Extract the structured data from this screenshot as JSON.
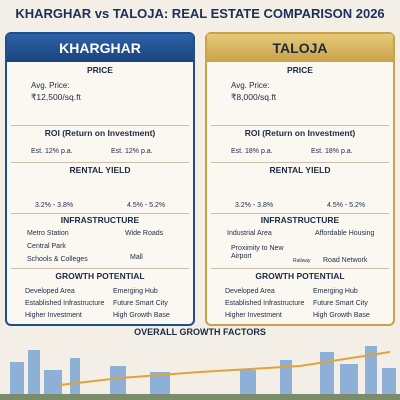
{
  "header": {
    "title": "KHARGHAR vs TALOJA: REAL ESTATE COMPARISON 2026"
  },
  "panels": [
    {
      "name": "KHARGHAR",
      "price": {
        "heading": "PRICE",
        "label": "Avg. Price:",
        "value": "₹12,500/sq.ft"
      },
      "roi": {
        "heading": "ROI (Return on Investment)",
        "values": [
          "Est. 12% p.a.",
          "Est. 12% p.a."
        ]
      },
      "rental": {
        "heading": "RENTAL YIELD",
        "values": [
          "3.2% - 3.8%",
          "4.5% - 5.2%"
        ]
      },
      "infrastructure": {
        "heading": "INFRASTRUCTURE",
        "items": [
          "Metro Station",
          "Wide Roads",
          "Central Park",
          "Schools & Colleges",
          "Mall"
        ]
      },
      "growth": {
        "heading": "GROWTH POTENTIAL",
        "items": [
          "Developed Area",
          "Emerging Hub",
          "Established Infrastructure",
          "Future Smart City",
          "Higher Investment",
          "High Growth Base"
        ]
      }
    },
    {
      "name": "TALOJA",
      "price": {
        "heading": "PRICE",
        "label": "Avg. Price:",
        "value": "₹8,000/sq.ft"
      },
      "roi": {
        "heading": "ROI (Return on Investment)",
        "values": [
          "Est. 18% p.a.",
          "Est. 18% p.a."
        ]
      },
      "rental": {
        "heading": "RENTAL YIELD",
        "values": [
          "3.2% - 3.8%",
          "4.5% - 5.2%"
        ]
      },
      "infrastructure": {
        "heading": "INFRASTRUCTURE",
        "items": [
          "Industrial Area",
          "Affordable Housing",
          "Proximity to New Airport",
          "Railway",
          "Road Network"
        ]
      },
      "growth": {
        "heading": "GROWTH POTENTIAL",
        "items": [
          "Developed Area",
          "Emerging Hub",
          "Established Infrastructure",
          "Future Smart City",
          "Higher Investment",
          "High Growth Base"
        ]
      }
    }
  ],
  "footer": {
    "title": "OVERALL GROWTH FACTORS"
  }
}
